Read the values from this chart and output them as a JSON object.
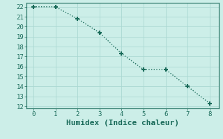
{
  "x": [
    0,
    1,
    2,
    3,
    4,
    5,
    6,
    7,
    8
  ],
  "y": [
    22,
    22,
    20.8,
    19.4,
    17.3,
    15.7,
    15.7,
    14.0,
    12.3
  ],
  "line_color": "#1a6b5a",
  "marker": "+",
  "marker_size": 5,
  "marker_lw": 1.5,
  "xlabel": "Humidex (Indice chaleur)",
  "xlim": [
    -0.3,
    8.4
  ],
  "ylim": [
    11.8,
    22.4
  ],
  "xticks": [
    0,
    1,
    2,
    3,
    4,
    5,
    6,
    7,
    8
  ],
  "yticks": [
    12,
    13,
    14,
    15,
    16,
    17,
    18,
    19,
    20,
    21,
    22
  ],
  "background_color": "#cceee8",
  "grid_color": "#aad8d2",
  "tick_label_fontsize": 6.5,
  "xlabel_fontsize": 8,
  "font_family": "monospace"
}
